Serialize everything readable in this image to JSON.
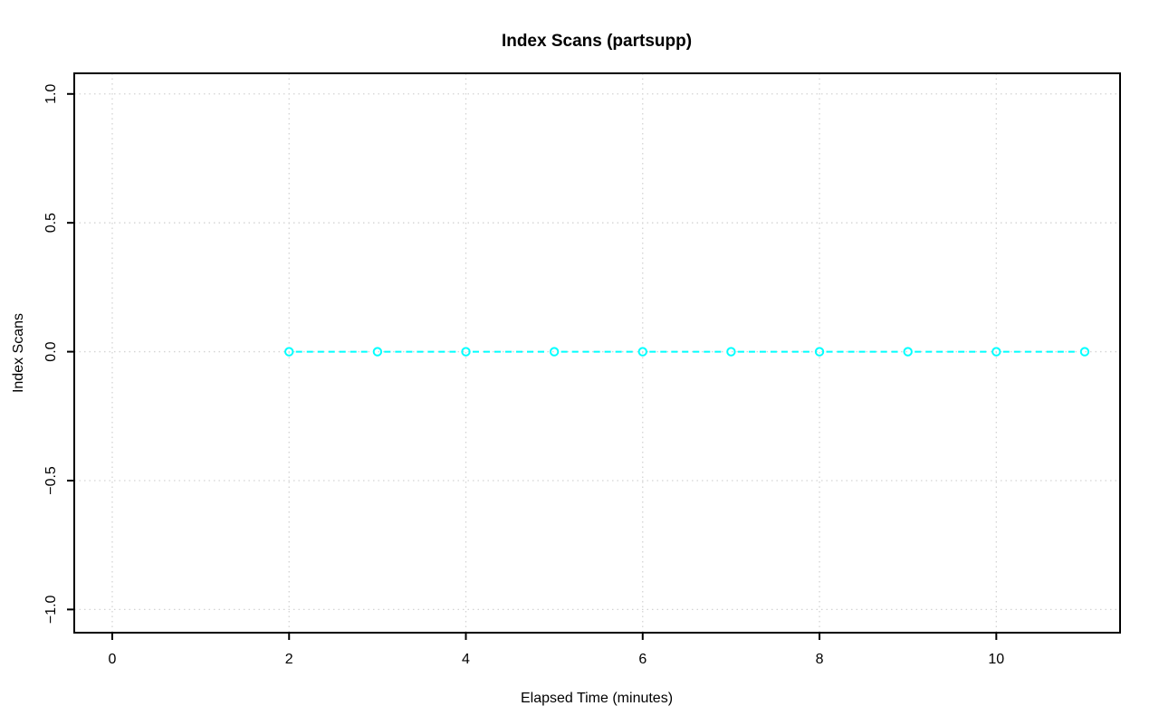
{
  "chart_data": {
    "type": "line",
    "title": "Index Scans (partsupp)",
    "xlabel": "Elapsed Time (minutes)",
    "ylabel": "Index Scans",
    "series": [
      {
        "name": "Index Scans",
        "x": [
          2,
          3,
          4,
          5,
          6,
          7,
          8,
          9,
          10,
          11
        ],
        "y": [
          0,
          0,
          0,
          0,
          0,
          0,
          0,
          0,
          0,
          0
        ],
        "color": "#00FFFF",
        "line_style": "dashed",
        "marker": "open-circle"
      }
    ],
    "xticks": [
      0,
      2,
      4,
      6,
      8,
      10
    ],
    "yticks": [
      -1,
      -0.5,
      0,
      0.5,
      1
    ],
    "xtick_labels": [
      "0",
      "2",
      "4",
      "6",
      "8",
      "10"
    ],
    "ytick_labels": [
      "−1.0",
      "−0.5",
      "0.0",
      "0.5",
      "1.0"
    ],
    "xlim": [
      -0.43,
      11.4
    ],
    "ylim": [
      -1.09,
      1.08
    ],
    "grid": true,
    "grid_style": "dotted",
    "legend_position": "none",
    "colors": {
      "grid": "#D3D3D3",
      "axis": "#000000",
      "background": "#FFFFFF"
    }
  }
}
